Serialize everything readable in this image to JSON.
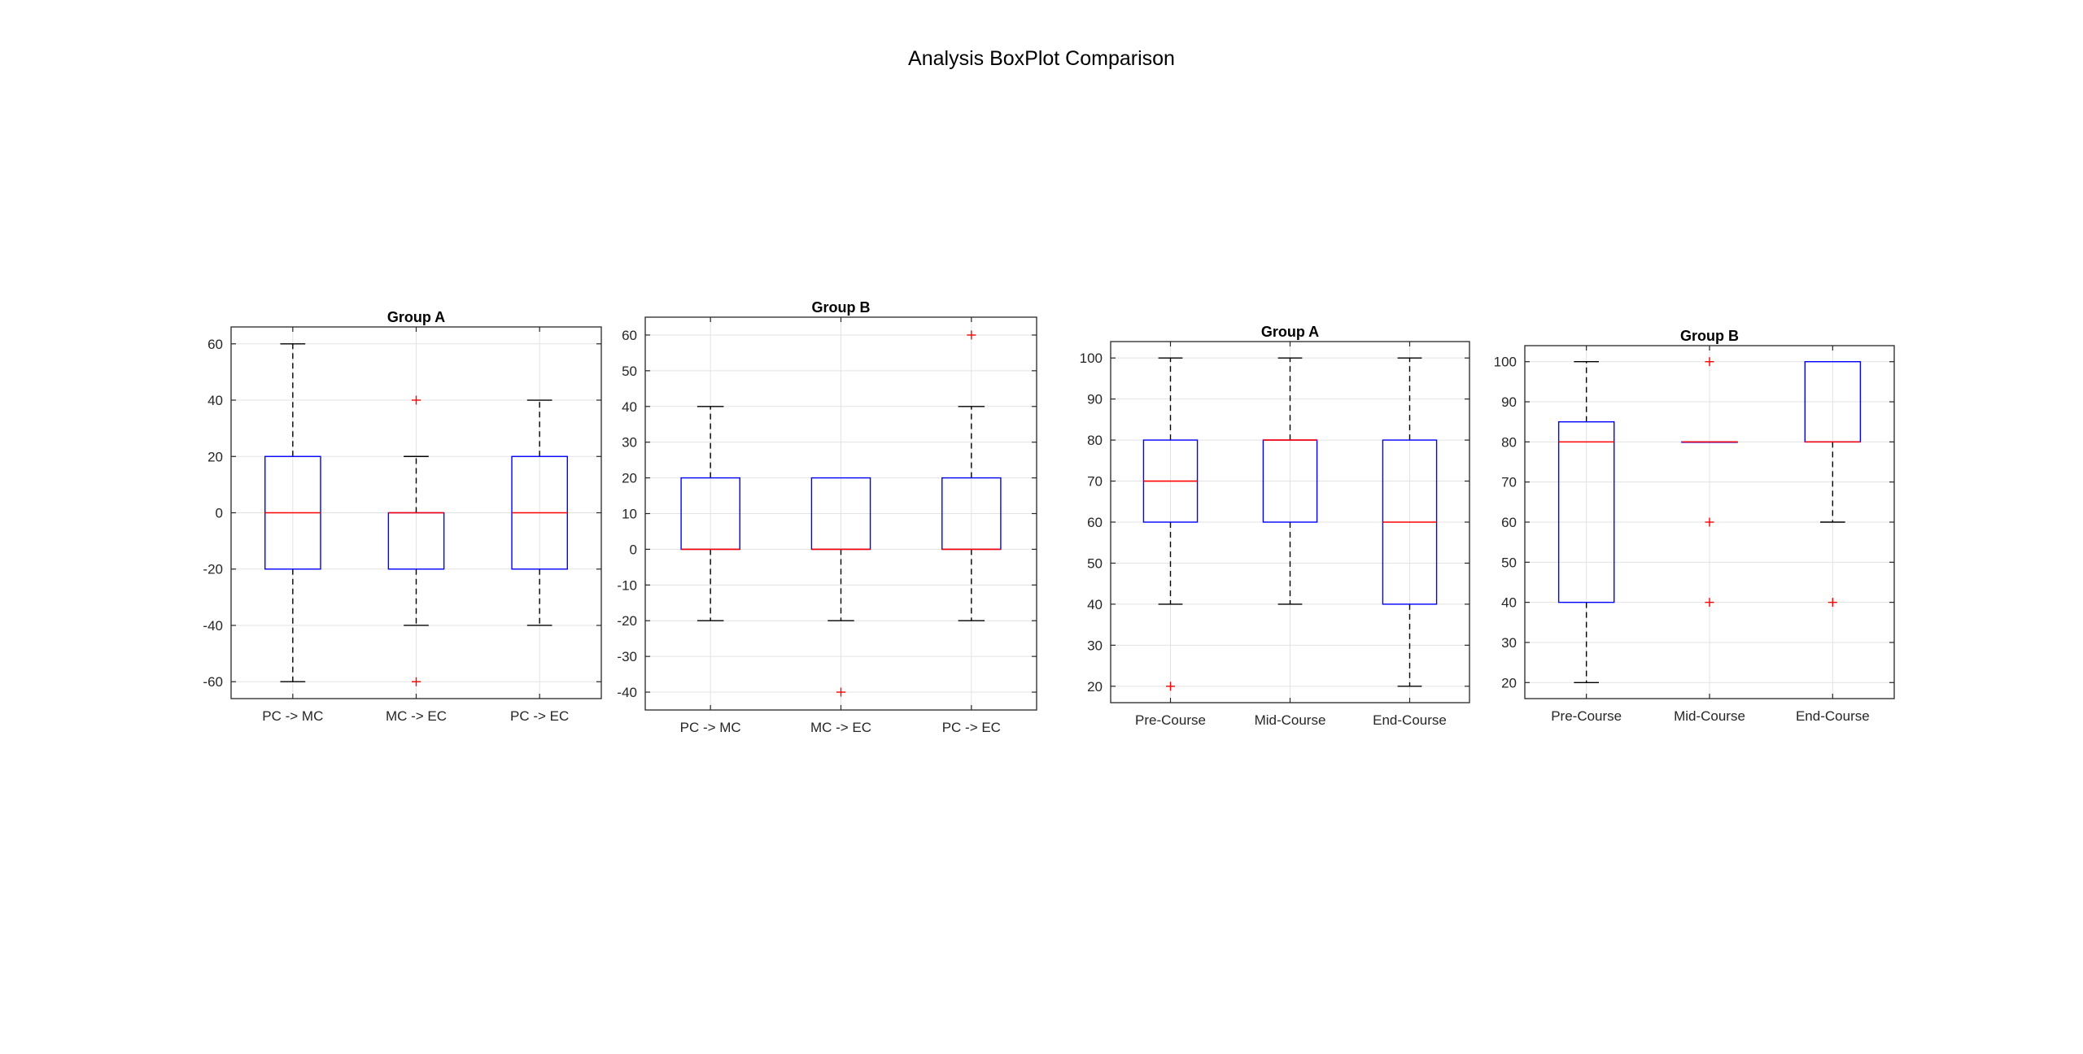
{
  "figure": {
    "title": "Analysis BoxPlot Comparison"
  },
  "style": {
    "box_color": "#0000ff",
    "median_color": "#ff0000",
    "outlier_color": "#ff0000",
    "whisker_color": "#000000",
    "grid_color": "#e3e3e3",
    "axes_color": "#262626"
  },
  "chart_data": [
    {
      "type": "boxplot",
      "title": "Group A",
      "xlabel": "",
      "ylabel": "",
      "categories": [
        "PC -> MC",
        "MC -> EC",
        "PC -> EC"
      ],
      "ylim": [
        -66,
        66
      ],
      "yticks": [
        -60,
        -40,
        -20,
        0,
        20,
        40,
        60
      ],
      "ytick_labels": [
        "-60",
        "-40",
        "-20",
        "0",
        "20",
        "40",
        "60"
      ],
      "grid": true,
      "boxes": [
        {
          "q1": -20,
          "median": 0,
          "q3": 20,
          "whisker_low": -60,
          "whisker_high": 60,
          "outliers": []
        },
        {
          "q1": -20,
          "median": 0,
          "q3": 0,
          "whisker_low": -40,
          "whisker_high": 20,
          "outliers": [
            40,
            -60
          ]
        },
        {
          "q1": -20,
          "median": 0,
          "q3": 20,
          "whisker_low": -40,
          "whisker_high": 40,
          "outliers": []
        }
      ]
    },
    {
      "type": "boxplot",
      "title": "Group B",
      "xlabel": "",
      "ylabel": "",
      "categories": [
        "PC -> MC",
        "MC -> EC",
        "PC -> EC"
      ],
      "ylim": [
        -45,
        65
      ],
      "yticks": [
        -40,
        -30,
        -20,
        -10,
        0,
        10,
        20,
        30,
        40,
        50,
        60
      ],
      "ytick_labels": [
        "-40",
        "-30",
        "-20",
        "-10",
        "0",
        "10",
        "20",
        "30",
        "40",
        "50",
        "60"
      ],
      "grid": true,
      "boxes": [
        {
          "q1": 0,
          "median": 0,
          "q3": 20,
          "whisker_low": -20,
          "whisker_high": 40,
          "outliers": []
        },
        {
          "q1": 0,
          "median": 0,
          "q3": 20,
          "whisker_low": -20,
          "whisker_high": 20,
          "outliers": [
            -40
          ]
        },
        {
          "q1": 0,
          "median": 0,
          "q3": 20,
          "whisker_low": -20,
          "whisker_high": 40,
          "outliers": [
            60
          ]
        }
      ]
    },
    {
      "type": "boxplot",
      "title": "Group A",
      "xlabel": "",
      "ylabel": "",
      "categories": [
        "Pre-Course",
        "Mid-Course",
        "End-Course"
      ],
      "ylim": [
        16,
        104
      ],
      "yticks": [
        20,
        30,
        40,
        50,
        60,
        70,
        80,
        90,
        100
      ],
      "ytick_labels": [
        "20",
        "30",
        "40",
        "50",
        "60",
        "70",
        "80",
        "90",
        "100"
      ],
      "grid": true,
      "boxes": [
        {
          "q1": 60,
          "median": 70,
          "q3": 80,
          "whisker_low": 40,
          "whisker_high": 100,
          "outliers": [
            20
          ]
        },
        {
          "q1": 60,
          "median": 80,
          "q3": 80,
          "whisker_low": 40,
          "whisker_high": 100,
          "outliers": []
        },
        {
          "q1": 40,
          "median": 60,
          "q3": 80,
          "whisker_low": 20,
          "whisker_high": 100,
          "outliers": []
        }
      ]
    },
    {
      "type": "boxplot",
      "title": "Group B",
      "xlabel": "",
      "ylabel": "",
      "categories": [
        "Pre-Course",
        "Mid-Course",
        "End-Course"
      ],
      "ylim": [
        16,
        104
      ],
      "yticks": [
        20,
        30,
        40,
        50,
        60,
        70,
        80,
        90,
        100
      ],
      "ytick_labels": [
        "20",
        "30",
        "40",
        "50",
        "60",
        "70",
        "80",
        "90",
        "100"
      ],
      "grid": true,
      "boxes": [
        {
          "q1": 40,
          "median": 80,
          "q3": 85,
          "whisker_low": 20,
          "whisker_high": 100,
          "outliers": []
        },
        {
          "q1": 80,
          "median": 80,
          "q3": 80,
          "whisker_low": 80,
          "whisker_high": 80,
          "outliers": [
            100,
            60,
            40
          ]
        },
        {
          "q1": 80,
          "median": 80,
          "q3": 100,
          "whisker_low": 60,
          "whisker_high": 100,
          "outliers": [
            40
          ]
        }
      ]
    }
  ]
}
